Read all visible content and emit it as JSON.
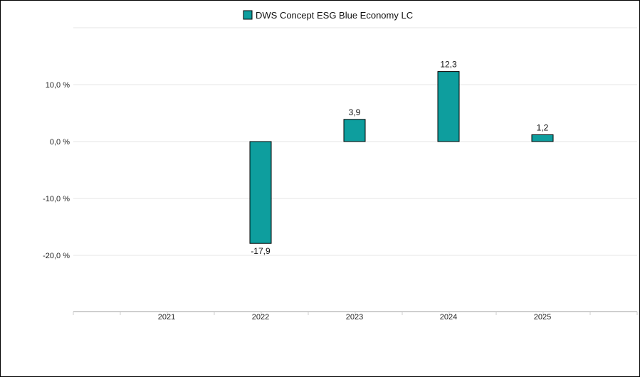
{
  "chart_data": {
    "type": "bar",
    "categories": [
      "2021",
      "2022",
      "2023",
      "2024",
      "2025"
    ],
    "series": [
      {
        "name": "DWS Concept ESG Blue Economy LC",
        "values": [
          null,
          -17.9,
          3.9,
          12.3,
          1.2
        ],
        "labels": [
          "",
          "-17,9",
          "3,9",
          "12,3",
          "1,2"
        ],
        "color": "#0e9e9e"
      }
    ],
    "yticks": [
      10,
      0,
      -10,
      -20
    ],
    "ytick_labels": [
      "10,0 %",
      "0,0 %",
      "-10,0 %",
      "-20,0 %"
    ],
    "ylim": [
      -30,
      20
    ],
    "grid": true,
    "legend_position": "top-center",
    "title": "",
    "xlabel": "",
    "ylabel": ""
  }
}
